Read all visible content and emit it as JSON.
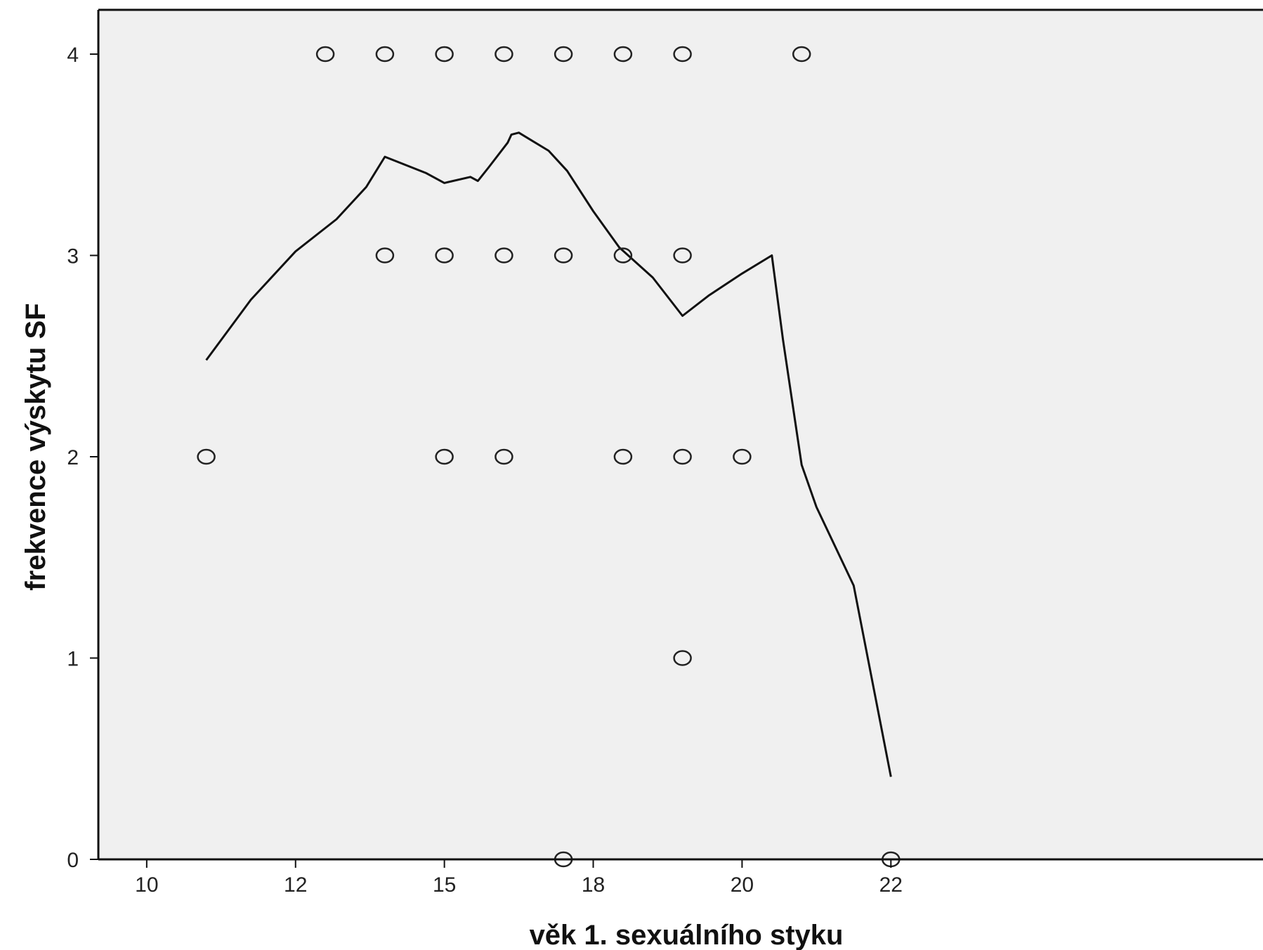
{
  "chart_data": {
    "type": "scatter",
    "title": "",
    "xlabel": "věk 1. sexuálního styku",
    "ylabel": "frekvence výskytu SF",
    "xlim": [
      9.35,
      25
    ],
    "ylim": [
      0,
      4.22
    ],
    "x_ticks": [
      {
        "value": 10,
        "label": "10"
      },
      {
        "value": 12,
        "label": "12"
      },
      {
        "value": 14,
        "label": "15"
      },
      {
        "value": 16,
        "label": "18"
      },
      {
        "value": 18,
        "label": "20"
      },
      {
        "value": 20,
        "label": "22"
      }
    ],
    "y_ticks": [
      {
        "value": 0,
        "label": "0"
      },
      {
        "value": 1,
        "label": "1"
      },
      {
        "value": 2,
        "label": "2"
      },
      {
        "value": 3,
        "label": "3"
      },
      {
        "value": 4,
        "label": "4"
      }
    ],
    "grid": false,
    "legend": "none",
    "plot_background": "#f0f0f0",
    "points": [
      {
        "x": 10.8,
        "y": 2
      },
      {
        "x": 12.4,
        "y": 4
      },
      {
        "x": 13.2,
        "y": 4
      },
      {
        "x": 13.2,
        "y": 3
      },
      {
        "x": 14.0,
        "y": 4
      },
      {
        "x": 14.0,
        "y": 3
      },
      {
        "x": 14.0,
        "y": 2
      },
      {
        "x": 14.8,
        "y": 4
      },
      {
        "x": 14.8,
        "y": 3
      },
      {
        "x": 14.8,
        "y": 2
      },
      {
        "x": 15.6,
        "y": 4
      },
      {
        "x": 15.6,
        "y": 3
      },
      {
        "x": 15.6,
        "y": 0
      },
      {
        "x": 16.4,
        "y": 4
      },
      {
        "x": 16.4,
        "y": 3
      },
      {
        "x": 16.4,
        "y": 2
      },
      {
        "x": 17.2,
        "y": 4
      },
      {
        "x": 17.2,
        "y": 3
      },
      {
        "x": 17.2,
        "y": 2
      },
      {
        "x": 17.2,
        "y": 1
      },
      {
        "x": 18.0,
        "y": 2
      },
      {
        "x": 18.8,
        "y": 4
      },
      {
        "x": 20.0,
        "y": 0
      }
    ],
    "fit_line": [
      {
        "x": 10.8,
        "y": 2.48
      },
      {
        "x": 11.4,
        "y": 2.78
      },
      {
        "x": 12.0,
        "y": 3.02
      },
      {
        "x": 12.55,
        "y": 3.18
      },
      {
        "x": 12.95,
        "y": 3.34
      },
      {
        "x": 13.2,
        "y": 3.49
      },
      {
        "x": 13.75,
        "y": 3.41
      },
      {
        "x": 14.0,
        "y": 3.36
      },
      {
        "x": 14.35,
        "y": 3.39
      },
      {
        "x": 14.45,
        "y": 3.37
      },
      {
        "x": 14.6,
        "y": 3.44
      },
      {
        "x": 14.85,
        "y": 3.56
      },
      {
        "x": 14.9,
        "y": 3.6
      },
      {
        "x": 15.0,
        "y": 3.61
      },
      {
        "x": 15.4,
        "y": 3.52
      },
      {
        "x": 15.65,
        "y": 3.42
      },
      {
        "x": 16.0,
        "y": 3.22
      },
      {
        "x": 16.35,
        "y": 3.04
      },
      {
        "x": 16.8,
        "y": 2.89
      },
      {
        "x": 17.2,
        "y": 2.7
      },
      {
        "x": 17.55,
        "y": 2.8
      },
      {
        "x": 18.0,
        "y": 2.91
      },
      {
        "x": 18.4,
        "y": 3.0
      },
      {
        "x": 18.55,
        "y": 2.58
      },
      {
        "x": 18.8,
        "y": 1.96
      },
      {
        "x": 19.0,
        "y": 1.75
      },
      {
        "x": 19.5,
        "y": 1.36
      },
      {
        "x": 20.0,
        "y": 0.41
      }
    ]
  }
}
